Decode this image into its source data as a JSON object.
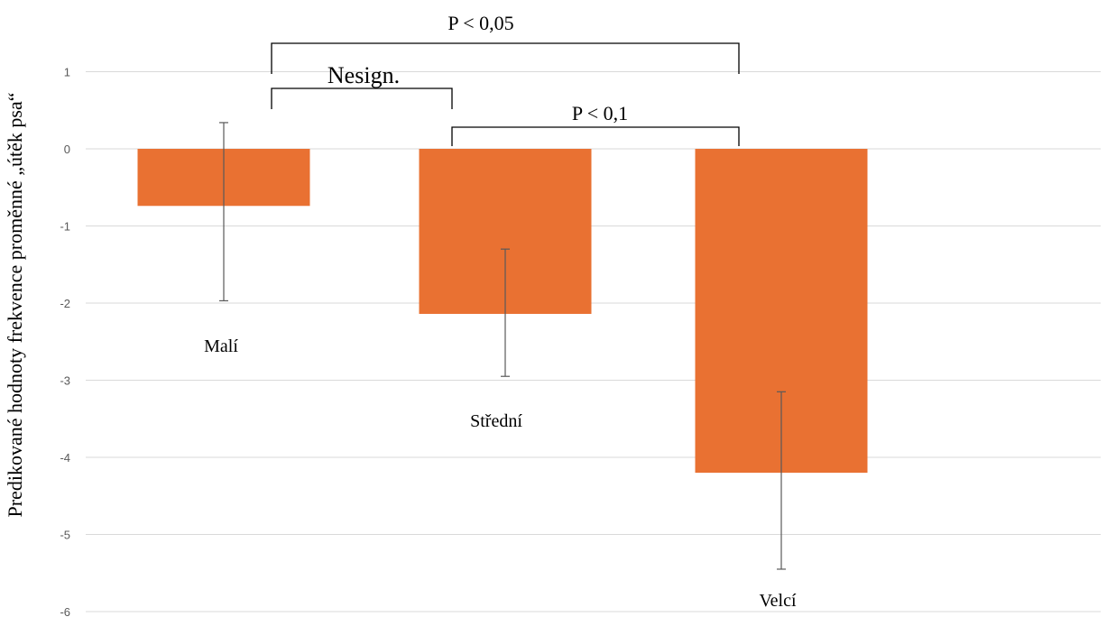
{
  "chart_data": {
    "type": "bar",
    "categories": [
      "Malí",
      "Střední",
      "Velcí"
    ],
    "values": [
      -0.74,
      -2.14,
      -4.2
    ],
    "error_bars": [
      {
        "low": -1.97,
        "high": 0.34
      },
      {
        "low": -2.95,
        "high": -1.3
      },
      {
        "low": -5.45,
        "high": -3.15
      }
    ],
    "ylabel": "Predikované hodnoty frekvence proměnné „útěk psa“",
    "xlabel": "",
    "ylim": [
      -6,
      1.4
    ],
    "yticks": [
      1,
      0,
      -1,
      -2,
      -3,
      -4,
      -5,
      -6
    ],
    "grid": true,
    "legend": "none",
    "bar_color": "#E97132",
    "significance": [
      {
        "from": 0,
        "to": 1,
        "label": "Nesign."
      },
      {
        "from": 1,
        "to": 2,
        "label": "P < 0,1"
      },
      {
        "from": 0,
        "to": 2,
        "label": "P < 0,05"
      }
    ]
  }
}
